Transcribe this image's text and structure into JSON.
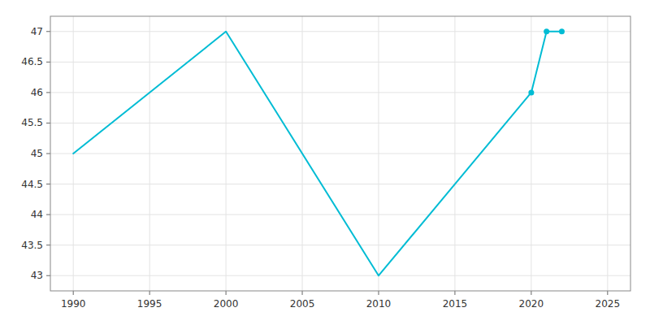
{
  "chart_data": {
    "type": "line",
    "x": [
      1990,
      2000,
      2010,
      2020,
      2021,
      2022
    ],
    "series": [
      {
        "type": "line",
        "color": "#00BCD4",
        "values": [
          45,
          47,
          43,
          46,
          47,
          47
        ]
      },
      {
        "type": "scatter",
        "color": "#00BCD4",
        "marker": "circle",
        "values": [
          null,
          null,
          null,
          46,
          47,
          47
        ]
      }
    ],
    "xlim": [
      1988.5,
      2026.5
    ],
    "ylim": [
      42.75,
      47.25
    ],
    "xticks": [
      1990,
      1995,
      2000,
      2005,
      2010,
      2015,
      2020,
      2025
    ],
    "yticks": [
      43,
      43.5,
      44,
      44.5,
      45,
      45.5,
      46,
      46.5,
      47
    ],
    "grid": true
  }
}
